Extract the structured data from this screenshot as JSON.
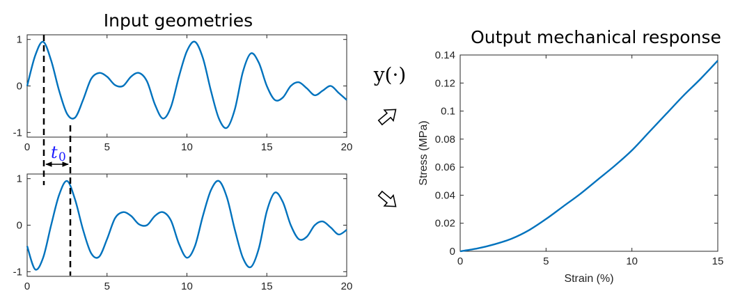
{
  "headings": {
    "input": "Input geometries",
    "output": "Output mechanical response"
  },
  "annotations": {
    "t0_symbol": "t",
    "t0_subscript": "0",
    "function_label": "y(·)"
  },
  "chart_data": [
    {
      "type": "line",
      "title": "",
      "xlim": [
        0,
        20
      ],
      "ylim": [
        -1.1,
        1.1
      ],
      "xticks": [
        0,
        5,
        10,
        15,
        20
      ],
      "yticks": [
        -1,
        0,
        1
      ],
      "color": "#0072BD",
      "series": [
        {
          "x": [
            0,
            0.5,
            1,
            1.5,
            2,
            2.5,
            3,
            3.5,
            4,
            4.5,
            5,
            5.5,
            6,
            6.5,
            7,
            7.5,
            8,
            8.5,
            9,
            9.5,
            10,
            10.5,
            11,
            11.5,
            12,
            12.5,
            13,
            13.5,
            14,
            14.5,
            15,
            15.5,
            16,
            16.5,
            17,
            17.5,
            18,
            18.5,
            19,
            19.5,
            20
          ],
          "y": [
            0,
            0.65,
            0.95,
            0.55,
            -0.1,
            -0.6,
            -0.68,
            -0.3,
            0.15,
            0.28,
            0.2,
            0.02,
            0.0,
            0.2,
            0.28,
            0.1,
            -0.4,
            -0.7,
            -0.45,
            0.2,
            0.75,
            0.95,
            0.6,
            -0.1,
            -0.7,
            -0.9,
            -0.5,
            0.3,
            0.7,
            0.5,
            0.0,
            -0.3,
            -0.25,
            0.0,
            0.08,
            -0.05,
            -0.2,
            -0.1,
            0.0,
            -0.15,
            -0.3
          ]
        }
      ]
    },
    {
      "type": "line",
      "title": "",
      "xlim": [
        0,
        20
      ],
      "ylim": [
        -1.1,
        1.1
      ],
      "xticks": [
        0,
        5,
        10,
        15,
        20
      ],
      "yticks": [
        -1,
        0,
        1
      ],
      "color": "#0072BD",
      "series": [
        {
          "x": [
            0,
            0.5,
            1,
            1.5,
            2,
            2.5,
            3,
            3.5,
            4,
            4.5,
            5,
            5.5,
            6,
            6.5,
            7,
            7.5,
            8,
            8.5,
            9,
            9.5,
            10,
            10.5,
            11,
            11.5,
            12,
            12.5,
            13,
            13.5,
            14,
            14.5,
            15,
            15.5,
            16,
            16.5,
            17,
            17.5,
            18,
            18.5,
            19,
            19.5,
            20
          ],
          "y": [
            -0.45,
            -0.95,
            -0.7,
            0.0,
            0.65,
            0.95,
            0.55,
            -0.1,
            -0.6,
            -0.68,
            -0.3,
            0.15,
            0.28,
            0.2,
            0.02,
            0.0,
            0.2,
            0.28,
            0.1,
            -0.4,
            -0.7,
            -0.45,
            0.2,
            0.75,
            0.95,
            0.6,
            -0.1,
            -0.7,
            -0.9,
            -0.5,
            0.3,
            0.7,
            0.5,
            0.0,
            -0.3,
            -0.25,
            0.0,
            0.08,
            -0.05,
            -0.2,
            -0.1
          ]
        }
      ]
    },
    {
      "type": "line",
      "title": "",
      "xlabel": "Strain (%)",
      "ylabel": "Stress (MPa)",
      "xlim": [
        0,
        15
      ],
      "ylim": [
        0,
        0.14
      ],
      "xticks": [
        0,
        5,
        10,
        15
      ],
      "yticks": [
        0,
        0.02,
        0.04,
        0.06,
        0.08,
        0.1,
        0.12,
        0.14
      ],
      "color": "#0072BD",
      "series": [
        {
          "x": [
            0,
            1,
            2,
            3,
            4,
            5,
            6,
            7,
            8,
            9,
            10,
            11,
            12,
            13,
            14,
            15
          ],
          "y": [
            0,
            0.002,
            0.005,
            0.009,
            0.015,
            0.023,
            0.032,
            0.041,
            0.051,
            0.061,
            0.072,
            0.085,
            0.098,
            0.111,
            0.123,
            0.136
          ]
        }
      ]
    }
  ]
}
